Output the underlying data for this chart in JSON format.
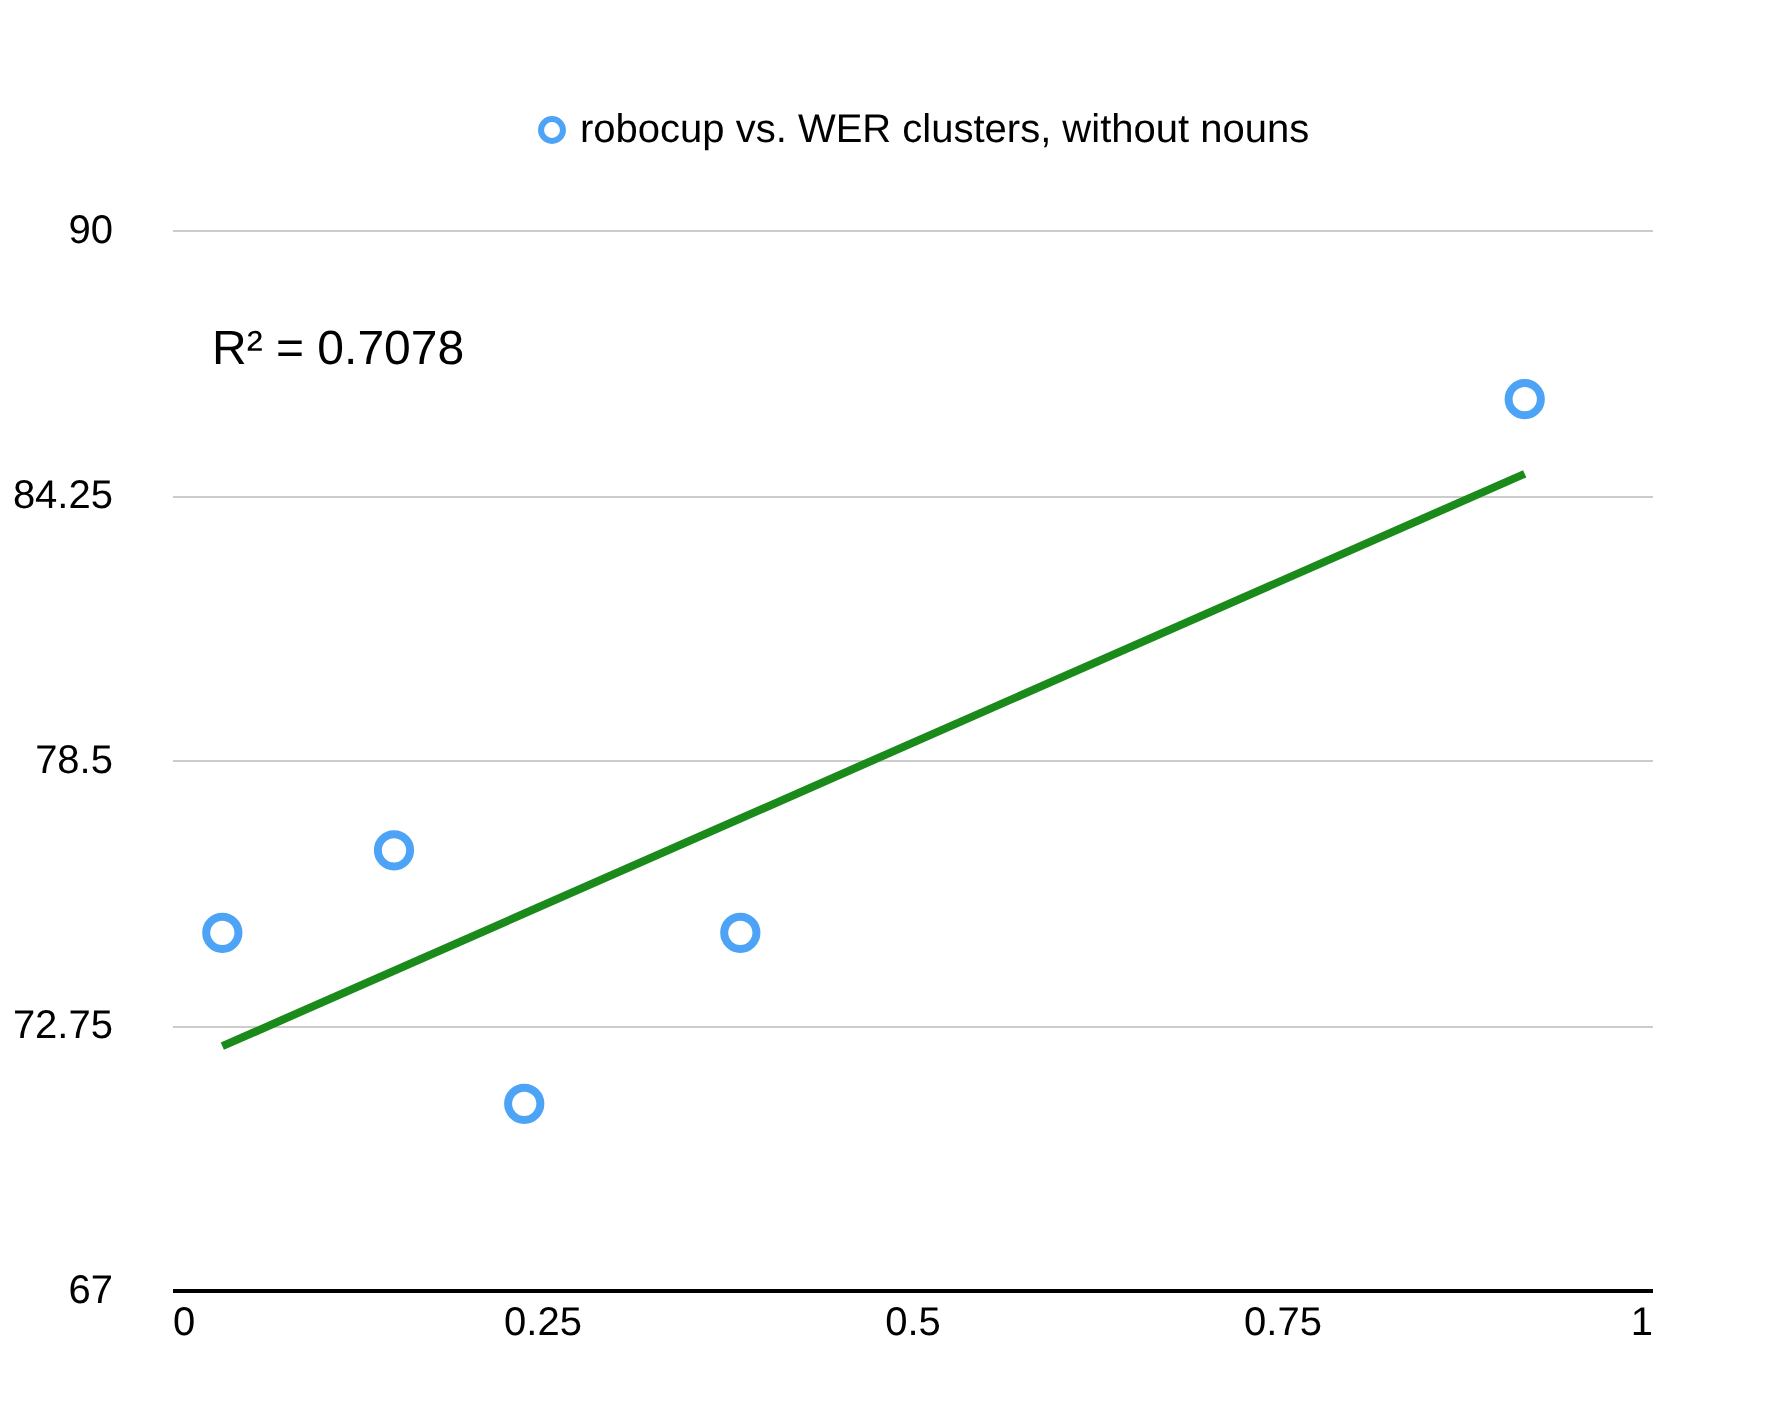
{
  "chart_data": {
    "type": "scatter",
    "xlim": [
      0,
      1
    ],
    "xticks": [
      0,
      0.25,
      0.5,
      0.75,
      1
    ],
    "ylim": [
      67,
      90
    ],
    "yticks": [
      67,
      72.75,
      78.5,
      84.25,
      90
    ],
    "grid": "y",
    "legend": "top",
    "marker": "circle",
    "annotations": [
      "R² = 0.7078"
    ],
    "series": [
      {
        "name": "robocup vs. WER clusters, without nouns",
        "color": "#4da3f5",
        "x": [
          0.034,
          0.15,
          0.238,
          0.384,
          0.914
        ],
        "values": [
          74.75,
          76.54,
          71.04,
          74.75,
          86.33
        ]
      },
      {
        "type": "line",
        "color": "#1a8a1a",
        "line_style": "solid",
        "marker": "none",
        "x": [
          0.034,
          0.914
        ],
        "values": [
          72.29,
          84.71
        ]
      }
    ]
  }
}
